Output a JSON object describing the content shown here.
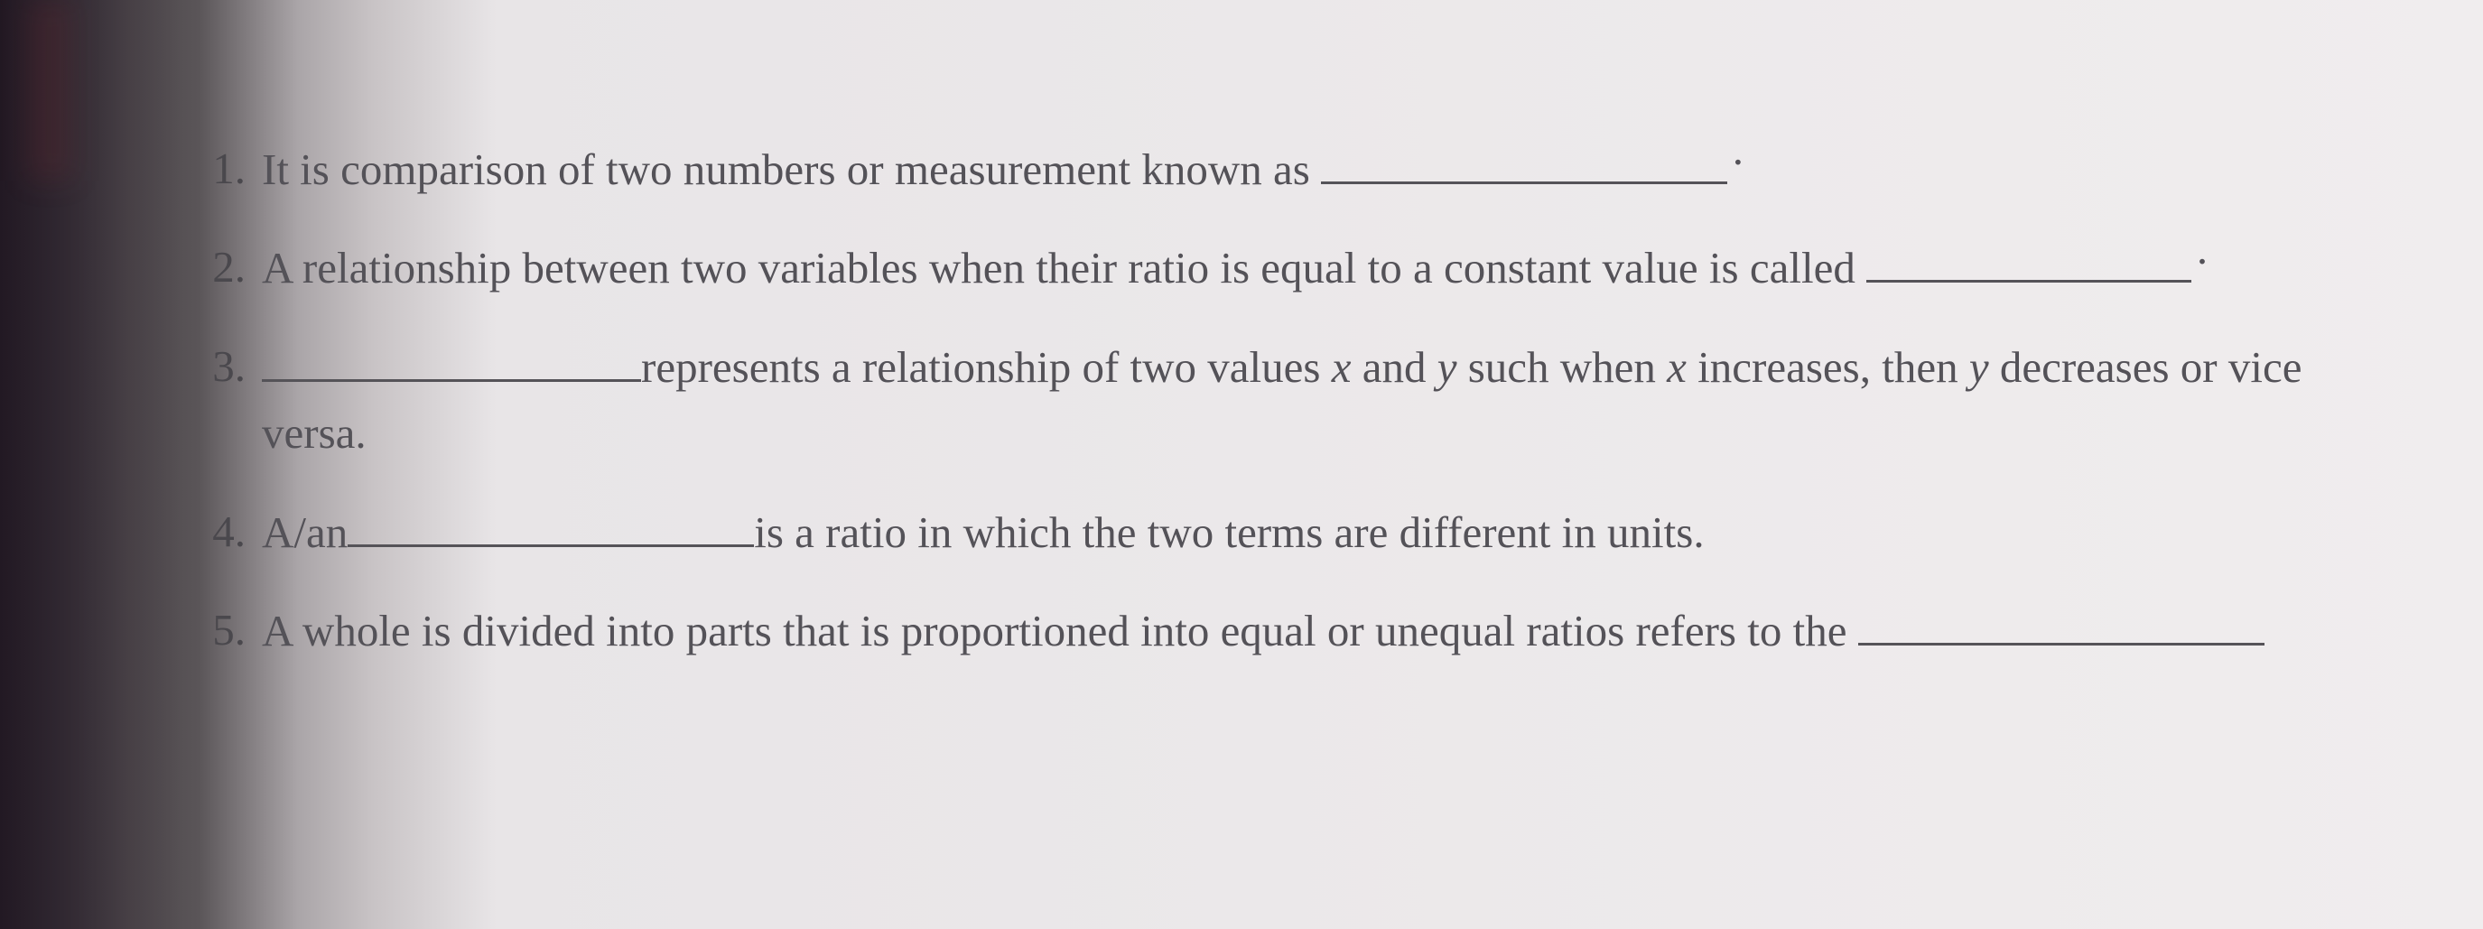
{
  "document": {
    "background_gradient": [
      "#3a3540",
      "#f0edee"
    ],
    "text_color": "#545258",
    "font_family": "Georgia, serif",
    "font_size_pt": 36,
    "underline_color": "#555358",
    "questions": [
      {
        "number": "1.",
        "parts": {
          "p1": "It is comparison of two numbers or measurement known as "
        },
        "blank_width": 450
      },
      {
        "number": "2.",
        "parts": {
          "p1": "A relationship between two variables when their ratio is equal to a constant value is called "
        },
        "blank_width": 360
      },
      {
        "number": "3.",
        "parts": {
          "p1": "represents a relationship of two values ",
          "var_x": "x",
          "p2": " and ",
          "var_y": "y",
          "p3": " such when ",
          "var_x2": "x",
          "p4": " increases, then ",
          "var_y2": "y",
          "p5": " decreases or vice versa."
        },
        "blank_width": 420
      },
      {
        "number": "4.",
        "parts": {
          "p1": "A/an",
          "p2": "is a ratio in which the two terms are different in units."
        },
        "blank_width": 450
      },
      {
        "number": "5.",
        "parts": {
          "p1": "A whole is divided into parts that is proportioned into equal or unequal ratios refers to the "
        },
        "blank_width": 450
      }
    ]
  }
}
